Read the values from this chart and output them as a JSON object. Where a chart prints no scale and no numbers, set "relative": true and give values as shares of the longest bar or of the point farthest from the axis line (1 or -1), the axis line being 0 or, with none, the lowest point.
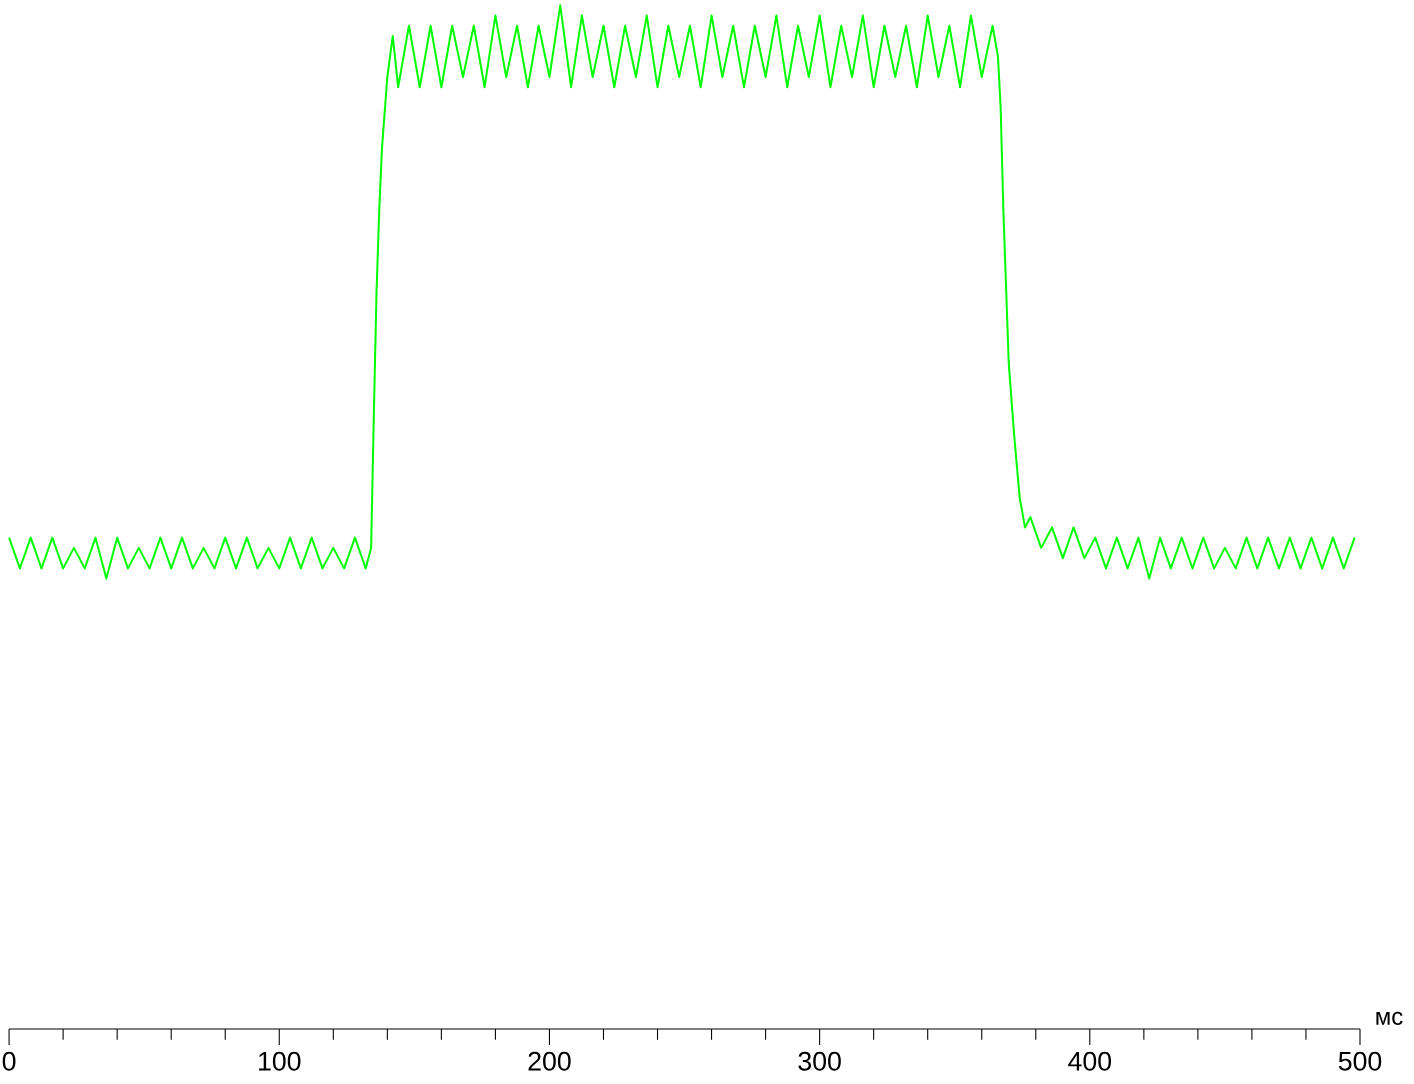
{
  "chart_data": {
    "type": "line",
    "xlabel": "мс",
    "relative": true,
    "marker": "none",
    "color": "#00ff00",
    "xlim": [
      0,
      500
    ],
    "xticks": [
      0,
      100,
      200,
      300,
      400,
      500
    ],
    "x": [
      0,
      4,
      8,
      12,
      16,
      20,
      24,
      28,
      32,
      36,
      40,
      44,
      48,
      52,
      56,
      60,
      64,
      68,
      72,
      76,
      80,
      84,
      88,
      92,
      96,
      100,
      104,
      108,
      112,
      116,
      120,
      124,
      128,
      132,
      134,
      135,
      136,
      137,
      138,
      140,
      142,
      144,
      148,
      152,
      156,
      160,
      164,
      168,
      172,
      176,
      180,
      184,
      188,
      192,
      196,
      200,
      204,
      208,
      212,
      216,
      220,
      224,
      228,
      232,
      236,
      240,
      244,
      248,
      252,
      256,
      260,
      264,
      268,
      272,
      276,
      280,
      284,
      288,
      292,
      296,
      300,
      304,
      308,
      312,
      316,
      320,
      324,
      328,
      332,
      336,
      340,
      344,
      348,
      352,
      356,
      360,
      364,
      366,
      367,
      368,
      370,
      372,
      374,
      376,
      378,
      382,
      386,
      390,
      394,
      398,
      402,
      406,
      410,
      414,
      418,
      422,
      426,
      430,
      434,
      438,
      442,
      446,
      450,
      454,
      458,
      462,
      466,
      470,
      474,
      478,
      482,
      486,
      490,
      494,
      498
    ],
    "values": [
      0.48,
      0.45,
      0.48,
      0.45,
      0.48,
      0.45,
      0.47,
      0.45,
      0.48,
      0.44,
      0.48,
      0.45,
      0.47,
      0.45,
      0.48,
      0.45,
      0.48,
      0.45,
      0.47,
      0.45,
      0.48,
      0.45,
      0.48,
      0.45,
      0.47,
      0.45,
      0.48,
      0.45,
      0.48,
      0.45,
      0.47,
      0.45,
      0.48,
      0.45,
      0.47,
      0.6,
      0.72,
      0.8,
      0.86,
      0.93,
      0.97,
      0.92,
      0.98,
      0.92,
      0.98,
      0.92,
      0.98,
      0.93,
      0.98,
      0.92,
      0.99,
      0.93,
      0.98,
      0.92,
      0.98,
      0.93,
      1.0,
      0.92,
      0.99,
      0.93,
      0.98,
      0.92,
      0.98,
      0.93,
      0.99,
      0.92,
      0.98,
      0.93,
      0.98,
      0.92,
      0.99,
      0.93,
      0.98,
      0.92,
      0.98,
      0.93,
      0.99,
      0.92,
      0.98,
      0.93,
      0.99,
      0.92,
      0.98,
      0.93,
      0.99,
      0.92,
      0.98,
      0.93,
      0.98,
      0.92,
      0.99,
      0.93,
      0.98,
      0.92,
      0.99,
      0.93,
      0.98,
      0.95,
      0.9,
      0.8,
      0.65,
      0.58,
      0.52,
      0.49,
      0.5,
      0.47,
      0.49,
      0.46,
      0.49,
      0.46,
      0.48,
      0.45,
      0.48,
      0.45,
      0.48,
      0.44,
      0.48,
      0.45,
      0.48,
      0.45,
      0.48,
      0.45,
      0.47,
      0.45,
      0.48,
      0.45,
      0.48,
      0.45,
      0.48,
      0.45,
      0.48,
      0.45,
      0.48,
      0.45,
      0.48
    ]
  }
}
